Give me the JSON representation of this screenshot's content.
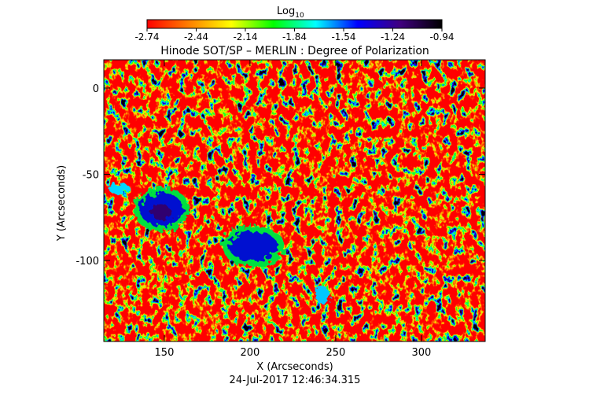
{
  "chart_data": {
    "type": "heatmap",
    "title": "Hinode SOT/SP – MERLIN : Degree of Polarization",
    "x_label": "X (Arcseconds)",
    "y_label": "Y (Arcseconds)",
    "timestamp": "24-Jul-2017 12:46:34.315",
    "colorbar_label": "Log",
    "colorbar_label_sub": "10",
    "colormap": [
      "#ff0000",
      "#ff8000",
      "#ffff00",
      "#00ff00",
      "#00ffff",
      "#0000ff",
      "#400080",
      "#000000"
    ],
    "clim": [
      -2.74,
      -0.94
    ],
    "cticks": [
      -2.74,
      -2.44,
      -2.14,
      -1.84,
      -1.54,
      -1.24,
      -0.94
    ],
    "xlim": [
      114.7,
      337.2
    ],
    "xticks": [
      150,
      200,
      250,
      300
    ],
    "ylim": [
      -147,
      16.4
    ],
    "yticks": [
      0,
      -50,
      -100
    ]
  }
}
